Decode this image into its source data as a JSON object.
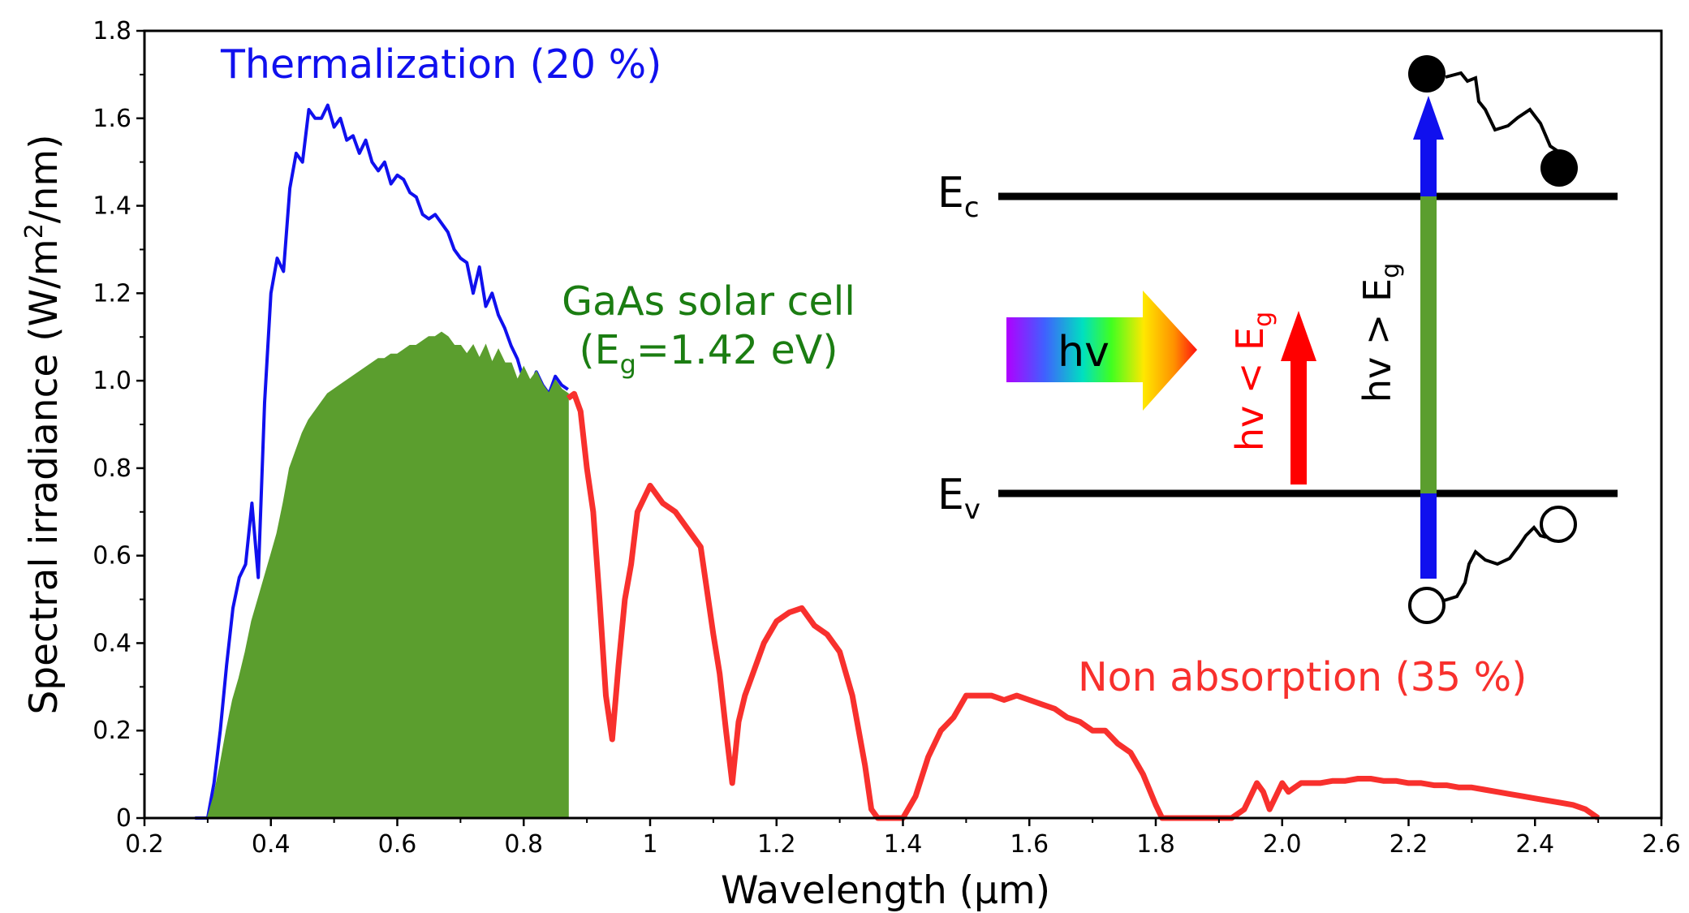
{
  "chart_data": {
    "type": "area",
    "xlabel": "Wavelength (μm)",
    "ylabel_prefix": "Spectral irradiance (W/m",
    "ylabel_sup": "2",
    "ylabel_suffix": "/nm)",
    "xlim": [
      0.2,
      2.6
    ],
    "ylim": [
      0,
      1.8
    ],
    "x_ticks": [
      {
        "value": 0.2,
        "label": "0.2"
      },
      {
        "value": 0.4,
        "label": "0.4"
      },
      {
        "value": 0.6,
        "label": "0.6"
      },
      {
        "value": 0.8,
        "label": "0.8"
      },
      {
        "value": 1.0,
        "label": "1"
      },
      {
        "value": 1.2,
        "label": "1.2"
      },
      {
        "value": 1.4,
        "label": "1.4"
      },
      {
        "value": 1.6,
        "label": "1.6"
      },
      {
        "value": 1.8,
        "label": "1.8"
      },
      {
        "value": 2.0,
        "label": "2.0"
      },
      {
        "value": 2.2,
        "label": "2.2"
      },
      {
        "value": 2.4,
        "label": "2.4"
      },
      {
        "value": 2.6,
        "label": "2.6"
      }
    ],
    "y_ticks": [
      {
        "value": 0,
        "label": "0"
      },
      {
        "value": 0.2,
        "label": "0.2"
      },
      {
        "value": 0.4,
        "label": "0.4"
      },
      {
        "value": 0.6,
        "label": "0.6"
      },
      {
        "value": 0.8,
        "label": "0.8"
      },
      {
        "value": 1.0,
        "label": "1.0"
      },
      {
        "value": 1.2,
        "label": "1.2"
      },
      {
        "value": 1.4,
        "label": "1.4"
      },
      {
        "value": 1.6,
        "label": "1.6"
      },
      {
        "value": 1.8,
        "label": "1.8"
      }
    ],
    "grid": false,
    "colors": {
      "thermalization": "#1010ee",
      "absorbed": "#5b9e2e",
      "non_absorption": "#f8302d"
    },
    "series": [
      {
        "key": "thermalization",
        "kind": "line",
        "x": [
          0.28,
          0.3,
          0.31,
          0.32,
          0.33,
          0.34,
          0.35,
          0.36,
          0.37,
          0.38,
          0.39,
          0.4,
          0.41,
          0.42,
          0.43,
          0.44,
          0.45,
          0.46,
          0.47,
          0.48,
          0.49,
          0.5,
          0.51,
          0.52,
          0.53,
          0.54,
          0.55,
          0.56,
          0.57,
          0.58,
          0.59,
          0.6,
          0.61,
          0.62,
          0.63,
          0.64,
          0.65,
          0.66,
          0.67,
          0.68,
          0.69,
          0.7,
          0.71,
          0.72,
          0.73,
          0.74,
          0.75,
          0.76,
          0.77,
          0.78,
          0.79,
          0.8,
          0.81,
          0.82,
          0.83,
          0.84,
          0.85,
          0.86,
          0.87
        ],
        "y": [
          0.0,
          0.0,
          0.08,
          0.2,
          0.35,
          0.48,
          0.55,
          0.58,
          0.72,
          0.55,
          0.95,
          1.2,
          1.28,
          1.25,
          1.44,
          1.52,
          1.5,
          1.62,
          1.6,
          1.6,
          1.63,
          1.58,
          1.6,
          1.55,
          1.56,
          1.52,
          1.55,
          1.5,
          1.48,
          1.5,
          1.45,
          1.47,
          1.46,
          1.43,
          1.42,
          1.38,
          1.37,
          1.38,
          1.36,
          1.34,
          1.3,
          1.28,
          1.27,
          1.2,
          1.26,
          1.17,
          1.2,
          1.15,
          1.12,
          1.08,
          1.05,
          1.0,
          0.98,
          1.02,
          0.99,
          0.97,
          1.01,
          0.99,
          0.98
        ]
      },
      {
        "key": "absorbed",
        "kind": "area",
        "x": [
          0.28,
          0.3,
          0.31,
          0.32,
          0.33,
          0.34,
          0.35,
          0.36,
          0.37,
          0.38,
          0.39,
          0.4,
          0.41,
          0.42,
          0.43,
          0.44,
          0.45,
          0.46,
          0.47,
          0.48,
          0.49,
          0.5,
          0.51,
          0.52,
          0.53,
          0.54,
          0.55,
          0.56,
          0.57,
          0.58,
          0.59,
          0.6,
          0.61,
          0.62,
          0.63,
          0.64,
          0.65,
          0.66,
          0.67,
          0.68,
          0.69,
          0.7,
          0.71,
          0.72,
          0.73,
          0.74,
          0.75,
          0.76,
          0.77,
          0.78,
          0.79,
          0.8,
          0.81,
          0.82,
          0.83,
          0.84,
          0.85,
          0.86,
          0.87
        ],
        "y": [
          0.0,
          0.0,
          0.05,
          0.12,
          0.2,
          0.27,
          0.32,
          0.38,
          0.45,
          0.5,
          0.55,
          0.6,
          0.65,
          0.72,
          0.8,
          0.84,
          0.88,
          0.91,
          0.93,
          0.95,
          0.97,
          0.98,
          0.99,
          1.0,
          1.01,
          1.02,
          1.03,
          1.04,
          1.05,
          1.05,
          1.06,
          1.06,
          1.07,
          1.08,
          1.08,
          1.09,
          1.1,
          1.1,
          1.11,
          1.1,
          1.08,
          1.08,
          1.06,
          1.08,
          1.05,
          1.08,
          1.04,
          1.07,
          1.04,
          1.04,
          1.0,
          1.03,
          1.0,
          1.02,
          0.99,
          0.97,
          1.0,
          0.98,
          0.97
        ]
      },
      {
        "key": "non_absorption",
        "kind": "line",
        "x": [
          0.87,
          0.88,
          0.89,
          0.9,
          0.91,
          0.92,
          0.93,
          0.94,
          0.95,
          0.96,
          0.97,
          0.98,
          0.99,
          1.0,
          1.02,
          1.04,
          1.06,
          1.08,
          1.1,
          1.11,
          1.12,
          1.13,
          1.14,
          1.15,
          1.16,
          1.18,
          1.2,
          1.22,
          1.24,
          1.26,
          1.28,
          1.3,
          1.32,
          1.34,
          1.35,
          1.36,
          1.38,
          1.4,
          1.42,
          1.44,
          1.46,
          1.48,
          1.5,
          1.52,
          1.54,
          1.56,
          1.58,
          1.6,
          1.62,
          1.64,
          1.66,
          1.68,
          1.7,
          1.72,
          1.74,
          1.76,
          1.78,
          1.8,
          1.81,
          1.82,
          1.84,
          1.86,
          1.88,
          1.9,
          1.92,
          1.94,
          1.95,
          1.96,
          1.97,
          1.98,
          1.99,
          2.0,
          2.01,
          2.02,
          2.03,
          2.04,
          2.05,
          2.06,
          2.08,
          2.1,
          2.12,
          2.14,
          2.16,
          2.18,
          2.2,
          2.22,
          2.24,
          2.26,
          2.28,
          2.3,
          2.32,
          2.34,
          2.36,
          2.38,
          2.4,
          2.42,
          2.44,
          2.46,
          2.48,
          2.5
        ],
        "y": [
          0.96,
          0.97,
          0.93,
          0.8,
          0.7,
          0.5,
          0.28,
          0.18,
          0.35,
          0.5,
          0.58,
          0.7,
          0.73,
          0.76,
          0.72,
          0.7,
          0.66,
          0.62,
          0.42,
          0.33,
          0.2,
          0.08,
          0.22,
          0.28,
          0.32,
          0.4,
          0.45,
          0.47,
          0.48,
          0.44,
          0.42,
          0.38,
          0.28,
          0.12,
          0.02,
          0.0,
          0.0,
          0.0,
          0.05,
          0.14,
          0.2,
          0.23,
          0.28,
          0.28,
          0.28,
          0.27,
          0.28,
          0.27,
          0.26,
          0.25,
          0.23,
          0.22,
          0.2,
          0.2,
          0.17,
          0.15,
          0.1,
          0.03,
          0.0,
          0.0,
          0.0,
          0.0,
          0.0,
          0.0,
          0.0,
          0.02,
          0.05,
          0.08,
          0.06,
          0.02,
          0.05,
          0.08,
          0.06,
          0.07,
          0.08,
          0.08,
          0.08,
          0.08,
          0.085,
          0.085,
          0.09,
          0.09,
          0.085,
          0.085,
          0.08,
          0.08,
          0.075,
          0.075,
          0.07,
          0.07,
          0.065,
          0.06,
          0.055,
          0.05,
          0.045,
          0.04,
          0.035,
          0.03,
          0.02,
          0.0
        ]
      }
    ],
    "annotations": {
      "thermalization": "Thermalization (20 %)",
      "cell_line1": "GaAs solar cell",
      "cell_line2_prefix": "(E",
      "cell_line2_sub": "g",
      "cell_line2_suffix": "=1.42 eV)",
      "non_absorption": "Non absorption (35 %)"
    },
    "inset": {
      "ec_main": "E",
      "ec_sub": "c",
      "ev_main": "E",
      "ev_sub": "v",
      "photon_label": "hv",
      "below_gap_prefix": "hv < E",
      "below_gap_sub": "g",
      "above_gap_prefix": "hv > E",
      "above_gap_sub": "g",
      "colors": {
        "arrow_blue": "#1010ee",
        "bar_green": "#5b9e2e",
        "arrow_red": "#ff0000"
      }
    }
  }
}
